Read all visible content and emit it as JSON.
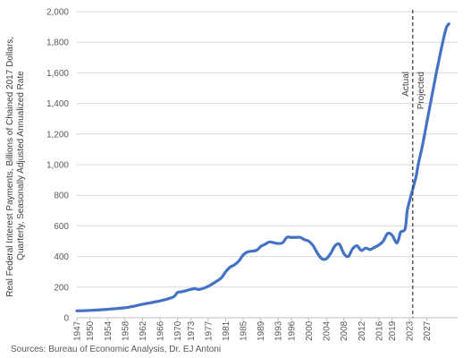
{
  "chart_data": {
    "type": "line",
    "title": "",
    "ylabel_lines": [
      "Real Federal Interest Payments, Billions of Chained 2017 Dollars,",
      "Quarterly, Seasonally Adjusted Annualized Rate"
    ],
    "xlabel": "",
    "ylim": [
      0,
      2000
    ],
    "xlim": [
      1947,
      2034
    ],
    "y_ticks": [
      "0",
      "200",
      "400",
      "600",
      "800",
      "1,000",
      "1,200",
      "1,400",
      "1,600",
      "1,800",
      "2,000"
    ],
    "x_ticks": [
      "1947",
      "1950",
      "1954",
      "1958",
      "1962",
      "1966",
      "1970",
      "1973",
      "1977",
      "1981",
      "1985",
      "1989",
      "1993",
      "1996",
      "2000",
      "2004",
      "2008",
      "2012",
      "2016",
      "2019",
      "2023",
      "2027"
    ],
    "grid": "horizontal",
    "line_color": "#4472C4",
    "vertical_marker": {
      "x": 2023.75,
      "label_left": "Actual",
      "label_right": "Projected"
    },
    "series": [
      {
        "x": [
          1947,
          1950,
          1954,
          1958,
          1960,
          1962,
          1966,
          1969,
          1970,
          1971,
          1973,
          1974,
          1975,
          1977,
          1979,
          1980,
          1981,
          1982,
          1983,
          1984,
          1985,
          1986,
          1988,
          1989,
          1990,
          1991,
          1992,
          1993,
          1994,
          1995,
          1996,
          1997,
          1998,
          1999,
          2000,
          2001,
          2002,
          2003,
          2004,
          2005,
          2006,
          2007,
          2008,
          2009,
          2010,
          2011,
          2012,
          2013,
          2014,
          2015,
          2016,
          2017,
          2018,
          2019,
          2020,
          2020.5,
          2021,
          2022,
          2022.5,
          2023,
          2023.75,
          2024.5,
          2025,
          2026,
          2027,
          2028,
          2029,
          2030,
          2031,
          2031.5,
          2032
        ],
        "y": [
          45,
          48,
          55,
          65,
          75,
          88,
          110,
          135,
          165,
          170,
          185,
          190,
          185,
          205,
          240,
          260,
          300,
          330,
          345,
          370,
          410,
          430,
          440,
          465,
          480,
          495,
          490,
          485,
          490,
          525,
          525,
          525,
          525,
          510,
          500,
          470,
          420,
          385,
          385,
          420,
          470,
          480,
          420,
          400,
          450,
          470,
          440,
          455,
          445,
          460,
          475,
          500,
          550,
          540,
          490,
          510,
          560,
          580,
          700,
          760,
          840,
          920,
          1000,
          1130,
          1280,
          1430,
          1580,
          1720,
          1850,
          1900,
          1920
        ]
      }
    ],
    "source": "Sources: Bureau of Economic Analysis, Dr. EJ Antoni"
  }
}
